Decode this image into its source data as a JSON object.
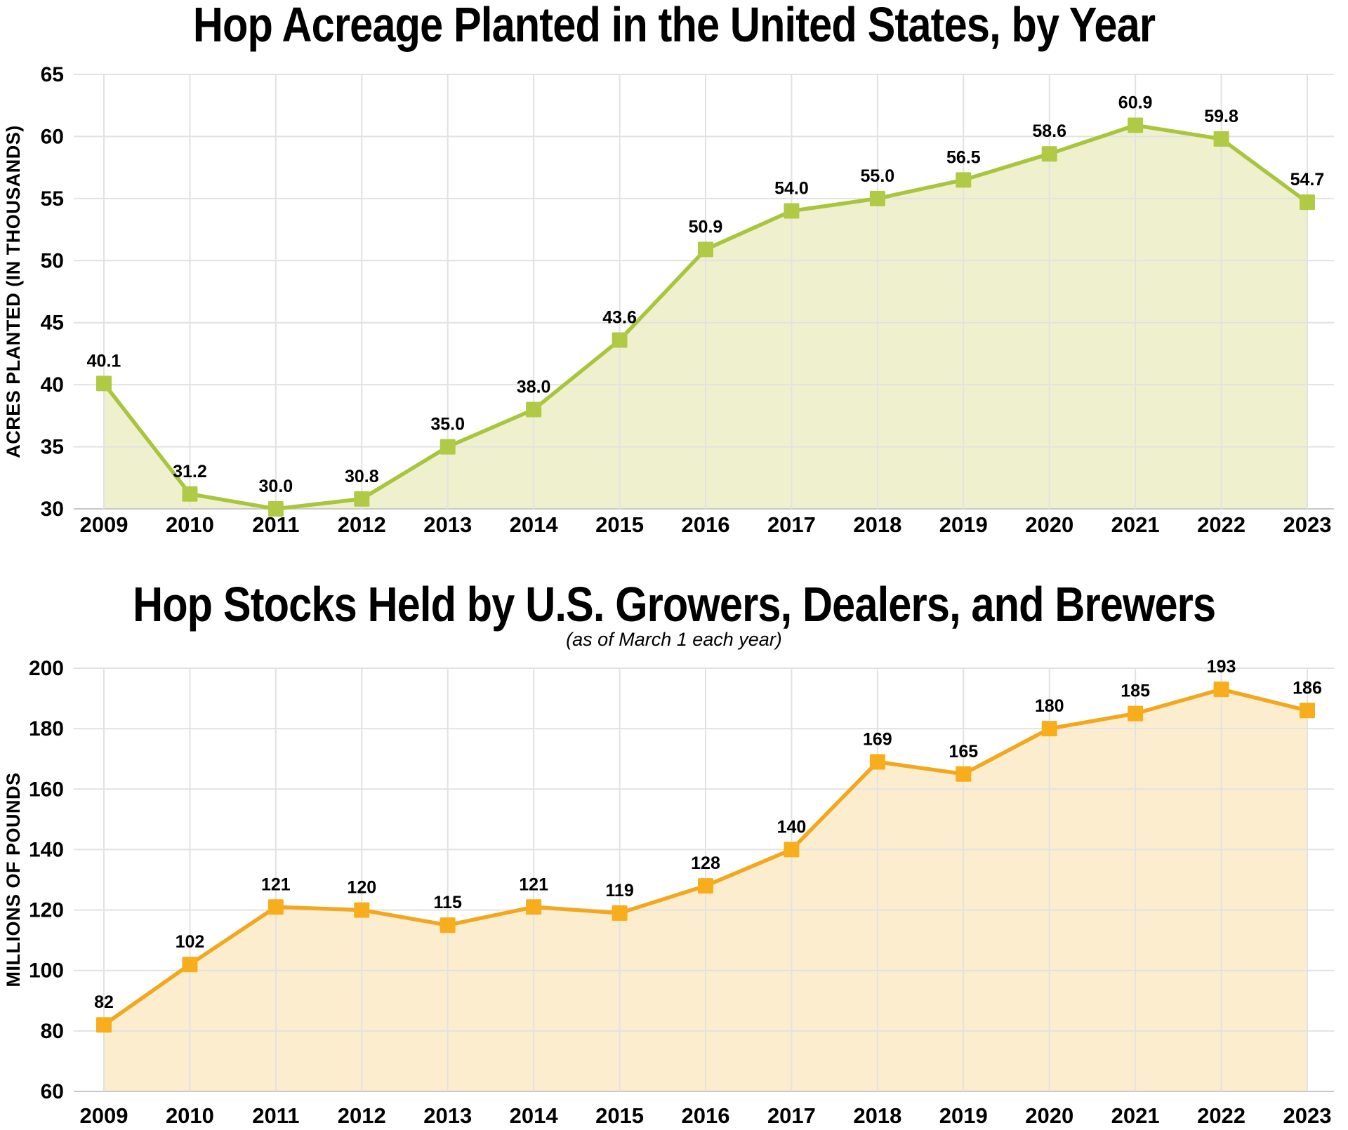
{
  "chart_data": [
    {
      "type": "line",
      "style": "line-area-markers",
      "title": "Hop Acreage Planted in the United States, by Year",
      "ylabel": "ACRES PLANTED (IN THOUSANDS)",
      "xlabel": "",
      "categories": [
        "2009",
        "2010",
        "2011",
        "2012",
        "2013",
        "2014",
        "2015",
        "2016",
        "2017",
        "2018",
        "2019",
        "2020",
        "2021",
        "2022",
        "2023"
      ],
      "values": [
        40.1,
        31.2,
        30.0,
        30.8,
        35.0,
        38.0,
        43.6,
        50.9,
        54.0,
        55.0,
        56.5,
        58.6,
        60.9,
        59.8,
        54.7
      ],
      "point_labels": [
        "40.1",
        "31.2",
        "30.0",
        "30.8",
        "35.0",
        "38.0",
        "43.6",
        "50.9",
        "54.0",
        "55.0",
        "56.5",
        "58.6",
        "60.9",
        "59.8",
        "54.7"
      ],
      "yticks": [
        30,
        35,
        40,
        45,
        50,
        55,
        60,
        65
      ],
      "ylim": [
        30,
        65
      ],
      "grid": "both",
      "legend": "none",
      "colors": {
        "line": "#a9c53e",
        "marker": "#b0ca45",
        "fill": "#eff1ce",
        "grid": "#e2e2e2",
        "baseline": "#c9c9c9",
        "text": "#000000"
      }
    },
    {
      "type": "line",
      "style": "line-area-markers",
      "title": "Hop Stocks Held by U.S. Growers, Dealers, and Brewers",
      "subtitle": "(as of March 1 each year)",
      "ylabel": "MILLIONS OF POUNDS",
      "xlabel": "",
      "categories": [
        "2009",
        "2010",
        "2011",
        "2012",
        "2013",
        "2014",
        "2015",
        "2016",
        "2017",
        "2018",
        "2019",
        "2020",
        "2021",
        "2022",
        "2023"
      ],
      "values": [
        82,
        102,
        121,
        120,
        115,
        121,
        119,
        128,
        140,
        169,
        165,
        180,
        185,
        193,
        186
      ],
      "point_labels": [
        "82",
        "102",
        "121",
        "120",
        "115",
        "121",
        "119",
        "128",
        "140",
        "169",
        "165",
        "180",
        "185",
        "193",
        "186"
      ],
      "yticks": [
        60,
        80,
        100,
        120,
        140,
        160,
        180,
        200
      ],
      "ylim": [
        60,
        200
      ],
      "grid": "both",
      "legend": "none",
      "colors": {
        "line": "#f3a71e",
        "marker": "#f8ad1c",
        "fill": "#fcedcf",
        "grid": "#e2e2e2",
        "baseline": "#c9c9c9",
        "text": "#000000"
      }
    }
  ]
}
